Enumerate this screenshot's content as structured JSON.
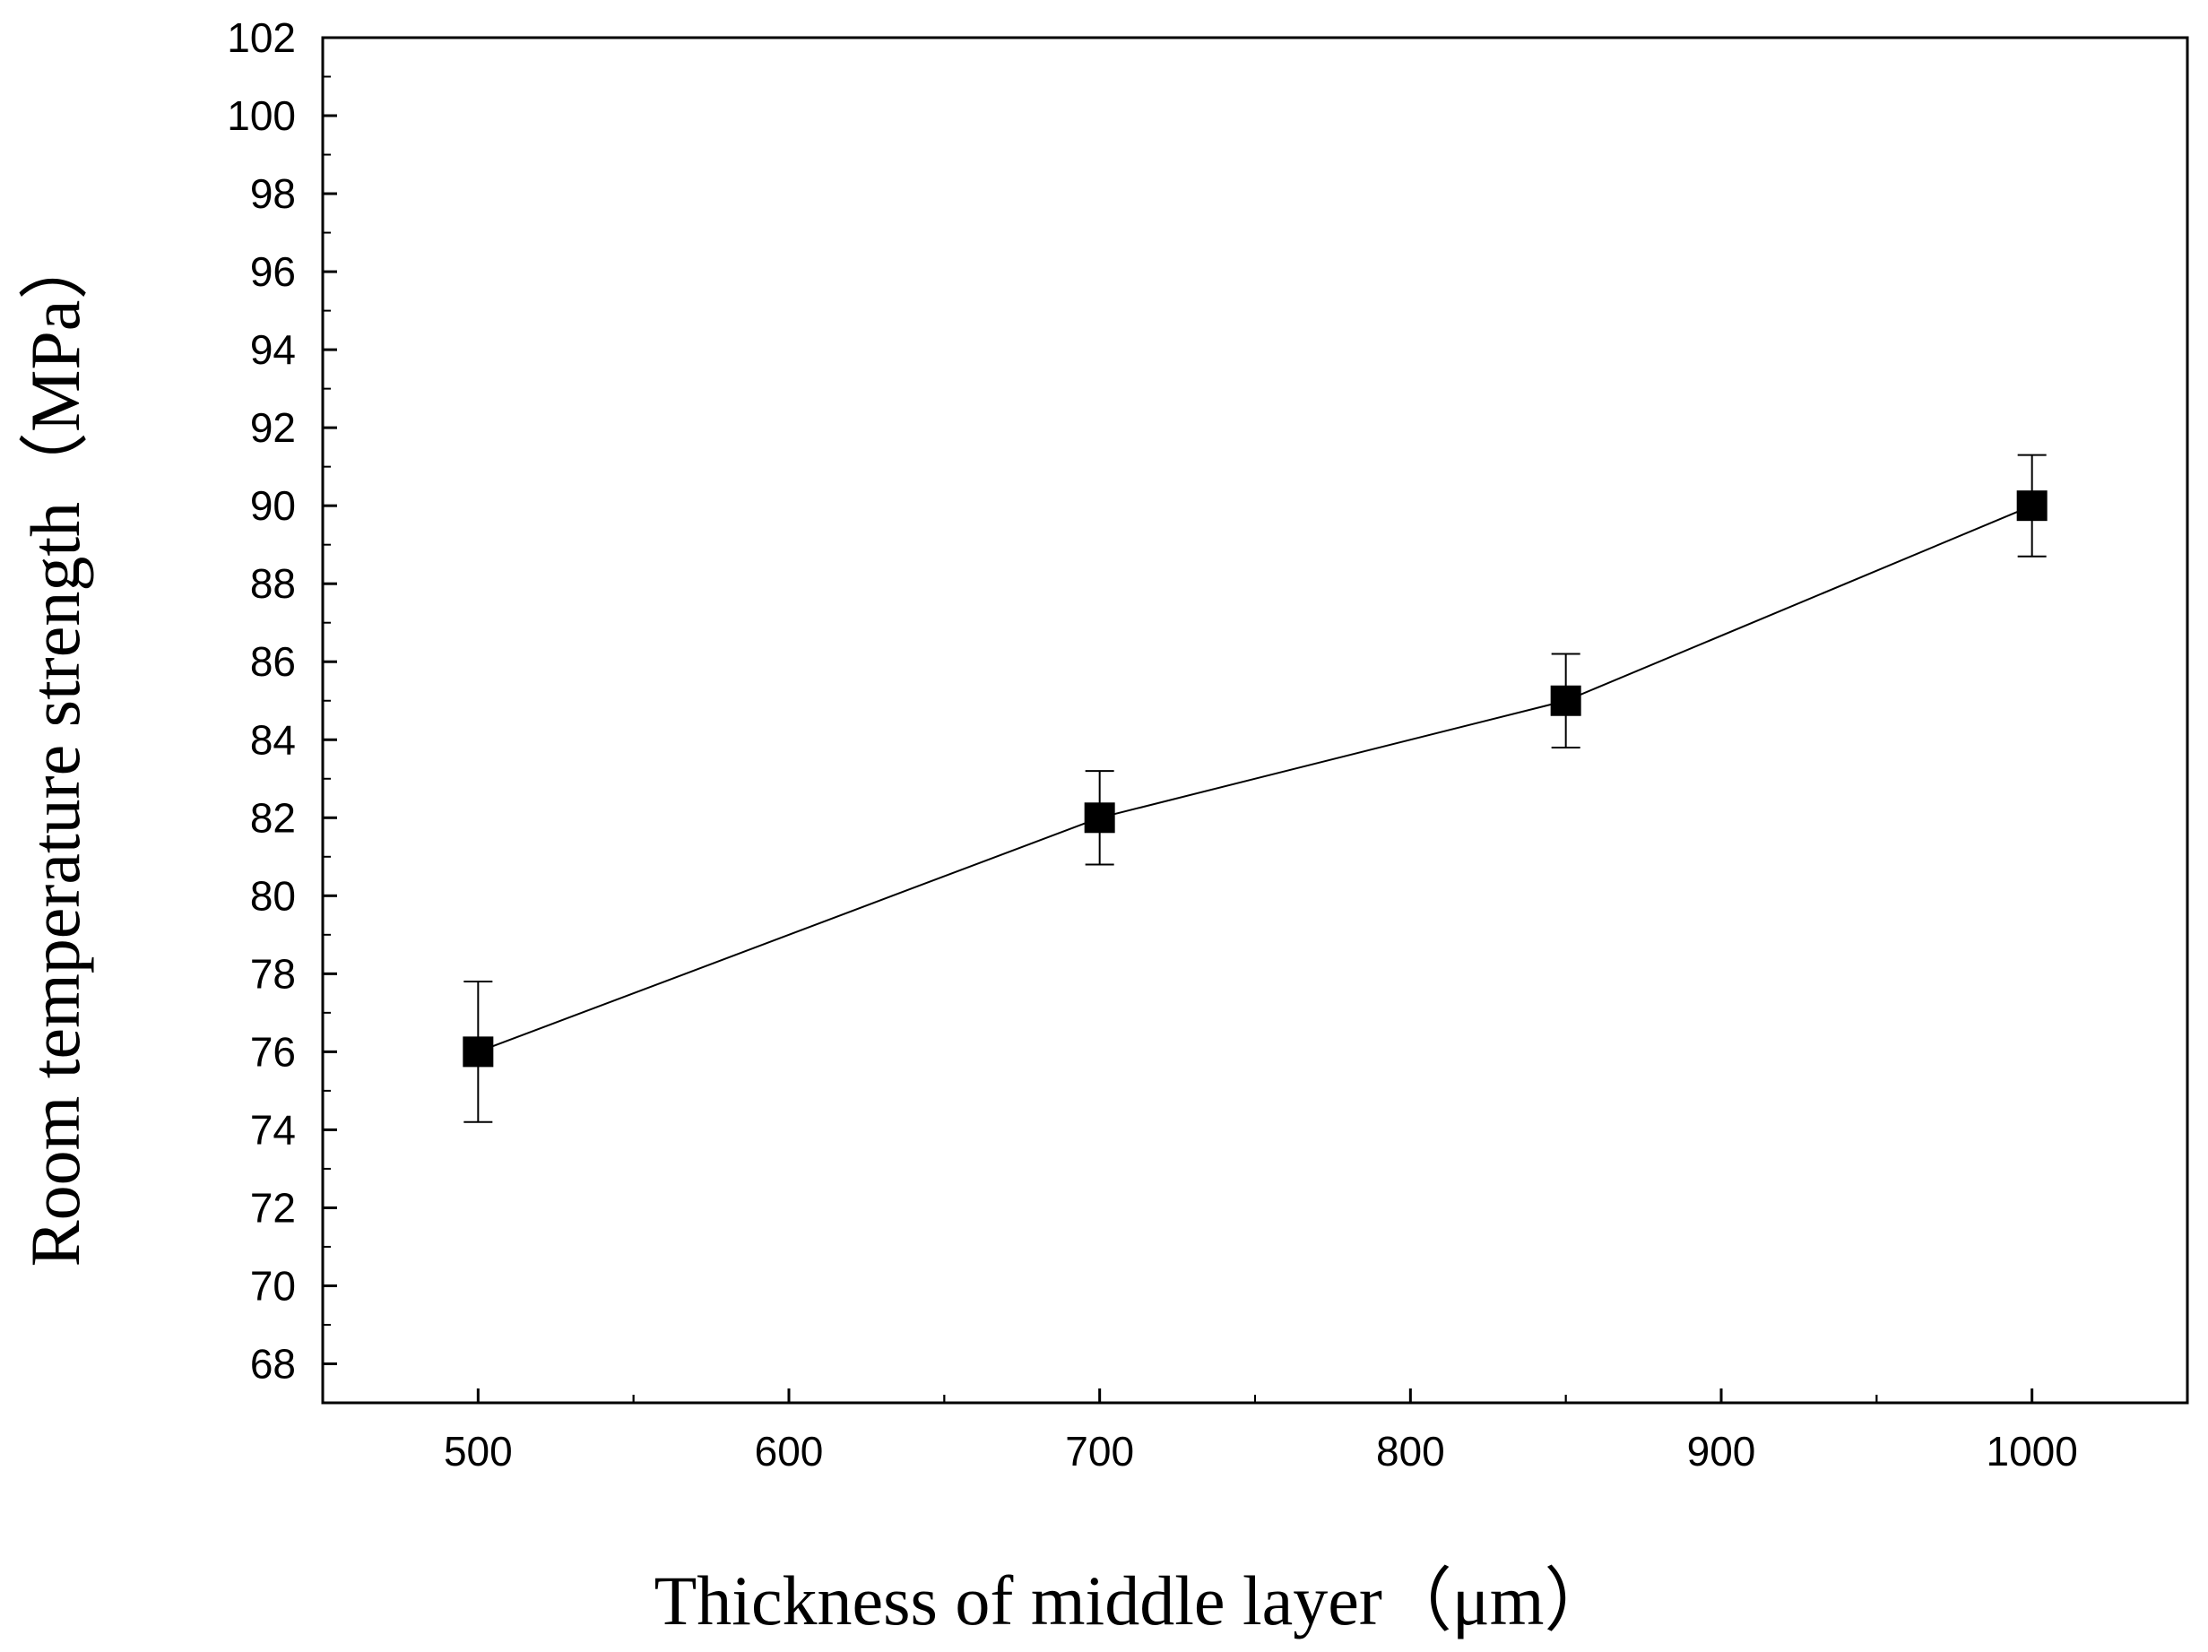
{
  "chart_data": {
    "type": "scatter",
    "title": "",
    "xlabel": "Thickness of middle layer（μm）",
    "ylabel": "Room temperature strength（MPa）",
    "xlim": [
      450,
      1050
    ],
    "ylim": [
      67,
      102
    ],
    "x_ticks": [
      500,
      600,
      700,
      800,
      900,
      1000
    ],
    "x_tick_labels": [
      "500",
      "600",
      "700",
      "800",
      "900",
      "1000"
    ],
    "y_ticks": [
      68,
      70,
      72,
      74,
      76,
      78,
      80,
      82,
      84,
      86,
      88,
      90,
      92,
      94,
      96,
      98,
      100,
      102
    ],
    "y_tick_labels": [
      "68",
      "70",
      "72",
      "74",
      "76",
      "78",
      "80",
      "82",
      "84",
      "86",
      "88",
      "90",
      "92",
      "94",
      "96",
      "98",
      "100",
      "102"
    ],
    "grid": false,
    "legend": "none",
    "marker": "square",
    "line": true,
    "colors": {
      "marker": "#000000",
      "line": "#000000",
      "axis": "#000000"
    },
    "series": [
      {
        "name": "Room temperature strength",
        "x": [
          500,
          700,
          850,
          1000
        ],
        "y": [
          76.0,
          82.0,
          85.0,
          90.0
        ],
        "error": [
          1.8,
          1.2,
          1.2,
          1.3
        ]
      }
    ]
  }
}
